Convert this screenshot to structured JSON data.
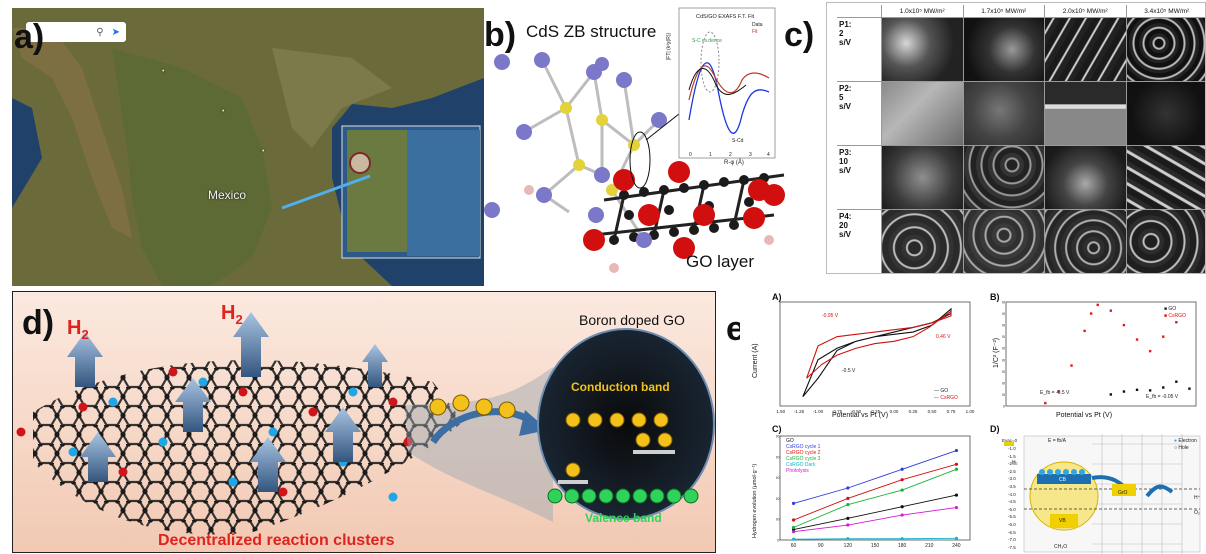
{
  "panel_a": {
    "label": "a)",
    "country_label": "Mexico",
    "search_icons": [
      "search-icon",
      "directions-icon"
    ]
  },
  "panel_b": {
    "label": "b)",
    "title": "CdS ZB structure",
    "layer_label": "GO layer",
    "inset": {
      "title": "CdS/GO EXAFS F.T. Fit",
      "legend": [
        "Data",
        "Fit"
      ],
      "annotations": [
        "S-C ev.dence",
        "S-Cd"
      ],
      "xlabel": "R-φ (Å)",
      "ylabel": "|FT| (k³χ(R))",
      "xticks": [
        "0",
        "1",
        "2",
        "3",
        "4"
      ]
    },
    "colors": {
      "cd_atom": "#7b78c9",
      "s_atom": "#e3d23a",
      "o_atom": "#d10f0f",
      "c_atom": "#1b1b1b",
      "h_atom": "#e8b8b8"
    }
  },
  "panel_c": {
    "label": "c)",
    "columns": [
      "1.0x10⁵ MW/m²",
      "1.7x10⁵ MW/m²",
      "2.0x10⁵ MW/m²",
      "3.4x10⁵ MW/m²"
    ],
    "rows": [
      "P1:\n2\ns/V",
      "P2:\n5\ns/V",
      "P3:\n10\ns/V",
      "P4:\n20\ns/V"
    ]
  },
  "panel_d": {
    "label": "d)",
    "h2_label": "H",
    "h2_sub": "2",
    "title": "Boron doped GO",
    "caption": "Decentralized reaction clusters",
    "conduction_band": "Conduction band",
    "valence_band": "Valence band",
    "colors": {
      "h2": "#e0231f",
      "conduction": "#f3c11a",
      "valence": "#2fd35a"
    }
  },
  "panel_e": {
    "label": "e)",
    "A": {
      "label": "A)",
      "xlabel": "Potential vs Pt (V)",
      "ylabel": "Current (A)",
      "annotations": [
        "-0.95 V",
        "0.46 V",
        "-0.5 V"
      ],
      "legend": [
        "GO",
        "CsRGO"
      ],
      "xticks": [
        "-1.50",
        "-1.25",
        "-1.00",
        "-0.75",
        "-0.50",
        "-0.25",
        "0.00",
        "0.25",
        "0.50",
        "0.75",
        "1.00"
      ],
      "yticks": [
        "0.75",
        "0.50",
        "0.25",
        "0.00",
        "-0.25",
        "-0.50",
        "-0.75",
        "-1.00",
        "-1.25",
        "-1.50"
      ]
    },
    "B": {
      "label": "B)",
      "xlabel": "Potential vs Pt (V)",
      "ylabel": "1/C² (F⁻²)",
      "legend": [
        "GO",
        "CsRGO"
      ],
      "annotations": [
        "E_fb = -0.5 V",
        "E_fb = -0.05 V"
      ],
      "yticks": [
        "18000",
        "16000",
        "14000",
        "12000",
        "10000",
        "8000",
        "6000",
        "4000",
        "2000",
        "0"
      ]
    },
    "C": {
      "label": "C)",
      "ylabel": "Hydrogen evolution (µmol·g⁻¹)",
      "legend": [
        "GO",
        "CsRGO cycle 1",
        "CsRGO cycle 2",
        "CsRGO cycle 3",
        "CsRGO Dark",
        "Photolysis"
      ],
      "xticks": [
        "60",
        "90",
        "120",
        "150",
        "180",
        "210",
        "240"
      ],
      "yticks": [
        "2500",
        "2000",
        "1500",
        "1000",
        "500",
        "0"
      ]
    },
    "D": {
      "label": "D)",
      "legend": [
        "Electron",
        "Hole"
      ],
      "scale_labels": [
        "Evac=0",
        "E",
        "NHE"
      ],
      "fermi": "E = fb/A",
      "bands": [
        "CB",
        "VB"
      ],
      "species": [
        "H⁺",
        "H₂",
        "O₂",
        "GrO",
        "CH₃O"
      ],
      "yticks": [
        "-1.0",
        "-1.5",
        "-2.0",
        "-2.5",
        "-3.0",
        "-3.5",
        "-4.0",
        "-4.5",
        "-5.0",
        "-5.5",
        "-6.0",
        "-6.5",
        "-7.0",
        "-7.5"
      ]
    }
  },
  "chart_data": [
    {
      "type": "line",
      "title": "",
      "xlabel": "Potential vs Pt (V)",
      "ylabel": "Current (A)",
      "xlim": [
        -1.5,
        1.0
      ],
      "ylim": [
        -1.5,
        0.75
      ],
      "series": [
        {
          "name": "GO",
          "x": [
            -1.2,
            -1.0,
            -0.75,
            -0.5,
            -0.25,
            0.0,
            0.25,
            0.5,
            0.75,
            0.75,
            0.5,
            0.25,
            0.0,
            -0.25,
            -0.5,
            -0.75,
            -1.0,
            -1.2
          ],
          "y": [
            -1.3,
            -0.9,
            -0.3,
            -0.1,
            0.0,
            0.05,
            0.1,
            0.25,
            0.6,
            0.5,
            0.3,
            0.2,
            0.1,
            0.0,
            -0.1,
            -0.25,
            -0.5,
            -1.3
          ]
        },
        {
          "name": "CsRGO",
          "x": [
            -1.15,
            -0.95,
            -0.75,
            -0.5,
            -0.25,
            0.0,
            0.25,
            0.46,
            0.75,
            0.75,
            0.5,
            0.25,
            0.0,
            -0.25,
            -0.5,
            -0.75,
            -1.0,
            -1.15
          ],
          "y": [
            -0.9,
            -0.6,
            -0.4,
            -0.25,
            -0.15,
            -0.1,
            0.0,
            0.2,
            0.55,
            0.45,
            0.3,
            0.2,
            0.15,
            0.1,
            0.05,
            0.0,
            -0.2,
            -0.9
          ]
        }
      ]
    },
    {
      "type": "scatter",
      "title": "",
      "xlabel": "Potential vs Pt (V)",
      "ylabel": "1/C² (F⁻²)",
      "xlim": [
        -1.0,
        0.45
      ],
      "ylim": [
        0,
        18000
      ],
      "series": [
        {
          "name": "GO",
          "x": [
            -0.2,
            -0.1,
            0.0,
            0.1,
            0.2,
            0.3,
            0.4
          ],
          "y": [
            2000,
            2500,
            2800,
            2700,
            3200,
            4200,
            3000
          ]
        },
        {
          "name": "CsRGO",
          "x": [
            -0.7,
            -0.6,
            -0.5,
            -0.4,
            -0.35,
            -0.3,
            -0.2,
            -0.1,
            0.0,
            0.1,
            0.2,
            0.3
          ],
          "y": [
            500,
            2500,
            7000,
            13000,
            16000,
            17500,
            16500,
            14000,
            11500,
            9500,
            12000,
            14500
          ]
        }
      ]
    },
    {
      "type": "line",
      "title": "",
      "xlabel": "",
      "ylabel": "Hydrogen evolution (µmol·g⁻¹)",
      "x": [
        60,
        120,
        180,
        240
      ],
      "ylim": [
        0,
        2500
      ],
      "series": [
        {
          "name": "GO",
          "values": [
            250,
            520,
            800,
            1080
          ]
        },
        {
          "name": "CsRGO cycle 1",
          "values": [
            880,
            1250,
            1700,
            2150
          ]
        },
        {
          "name": "CsRGO cycle 2",
          "values": [
            480,
            1000,
            1450,
            1820
          ]
        },
        {
          "name": "CsRGO cycle 3",
          "values": [
            300,
            850,
            1200,
            1700
          ]
        },
        {
          "name": "CsRGO Dark",
          "values": [
            20,
            30,
            30,
            40
          ]
        },
        {
          "name": "Photolysis",
          "values": [
            200,
            360,
            600,
            780
          ]
        }
      ]
    }
  ]
}
